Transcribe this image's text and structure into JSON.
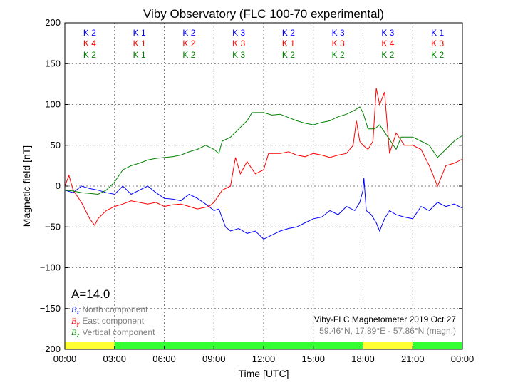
{
  "chart_data": {
    "type": "line",
    "title": "Viby Observatory (FLC 100-70 experimental)",
    "xlabel": "Time [UTC]",
    "ylabel": "Magnetic field [nT]",
    "xlim": [
      0,
      24
    ],
    "ylim": [
      -200,
      200
    ],
    "xticks": [
      "00:00",
      "03:00",
      "06:00",
      "09:00",
      "12:00",
      "15:00",
      "18:00",
      "21:00",
      "00:00"
    ],
    "yticks": [
      200,
      150,
      100,
      50,
      0,
      -50,
      -100,
      -150,
      -200
    ],
    "grid": true,
    "k_indices": {
      "north": [
        "K 2",
        "K 1",
        "K 2",
        "K 3",
        "K 2",
        "K 3",
        "K 3",
        "K 1"
      ],
      "east": [
        "K 4",
        "K 1",
        "K 2",
        "K 3",
        "K 1",
        "K 3",
        "K 4",
        "K 3"
      ],
      "vertical": [
        "K 2",
        "K 1",
        "K 2",
        "K 3",
        "K 2",
        "K 2",
        "K 2",
        "K 2"
      ]
    },
    "activity_bar": [
      {
        "from": 0,
        "to": 3,
        "color": "#ffff33"
      },
      {
        "from": 3,
        "to": 18,
        "color": "#33ff33"
      },
      {
        "from": 18,
        "to": 21,
        "color": "#ffff33"
      },
      {
        "from": 21,
        "to": 24,
        "color": "#33ff33"
      }
    ],
    "a_index": "A=14.0",
    "legend": [
      {
        "symbol": "B",
        "sub": "x",
        "label": "North component",
        "color": "#0000ff"
      },
      {
        "symbol": "B",
        "sub": "y",
        "label": "East component",
        "color": "#ff0000"
      },
      {
        "symbol": "B",
        "sub": "z",
        "label": "Vertical component",
        "color": "#008000"
      }
    ],
    "station": "Viby-FLC Magnetometer 2019 Oct 27",
    "coords": "59.46°N, 17.89°E - 57.86°N (magn.)",
    "series": [
      {
        "name": "Bx",
        "color": "#0000ff",
        "points": [
          [
            0,
            -5
          ],
          [
            0.5,
            -8
          ],
          [
            1,
            0
          ],
          [
            1.5,
            -3
          ],
          [
            2,
            -5
          ],
          [
            2.5,
            -8
          ],
          [
            3,
            -10
          ],
          [
            3.5,
            0
          ],
          [
            4,
            -10
          ],
          [
            4.5,
            -5
          ],
          [
            5,
            0
          ],
          [
            5.5,
            -8
          ],
          [
            6,
            -15
          ],
          [
            6.5,
            -16
          ],
          [
            7,
            -18
          ],
          [
            7.5,
            -10
          ],
          [
            8,
            -15
          ],
          [
            8.5,
            -22
          ],
          [
            8.7,
            -25
          ],
          [
            9,
            -30
          ],
          [
            9.3,
            -28
          ],
          [
            9.7,
            -50
          ],
          [
            10,
            -55
          ],
          [
            10.5,
            -52
          ],
          [
            11,
            -58
          ],
          [
            11.5,
            -55
          ],
          [
            12,
            -65
          ],
          [
            12.5,
            -60
          ],
          [
            13,
            -55
          ],
          [
            13.5,
            -52
          ],
          [
            14,
            -50
          ],
          [
            14.5,
            -45
          ],
          [
            15,
            -40
          ],
          [
            15.5,
            -38
          ],
          [
            16,
            -30
          ],
          [
            16.5,
            -35
          ],
          [
            17,
            -25
          ],
          [
            17.5,
            -30
          ],
          [
            17.8,
            -20
          ],
          [
            18,
            -5
          ],
          [
            18.05,
            10
          ],
          [
            18.2,
            -30
          ],
          [
            18.5,
            -35
          ],
          [
            18.8,
            -45
          ],
          [
            19,
            -55
          ],
          [
            19.3,
            -40
          ],
          [
            19.6,
            -30
          ],
          [
            20,
            -35
          ],
          [
            20.5,
            -38
          ],
          [
            21,
            -40
          ],
          [
            21.5,
            -25
          ],
          [
            22,
            -30
          ],
          [
            22.5,
            -20
          ],
          [
            23,
            -25
          ],
          [
            23.5,
            -22
          ],
          [
            24,
            -27
          ]
        ]
      },
      {
        "name": "By",
        "color": "#ff0000",
        "points": [
          [
            0,
            0
          ],
          [
            0.25,
            13
          ],
          [
            0.5,
            -5
          ],
          [
            1,
            -20
          ],
          [
            1.5,
            -40
          ],
          [
            1.8,
            -48
          ],
          [
            2,
            -40
          ],
          [
            2.5,
            -30
          ],
          [
            3,
            -25
          ],
          [
            3.5,
            -22
          ],
          [
            4,
            -18
          ],
          [
            4.5,
            -20
          ],
          [
            5,
            -22
          ],
          [
            5.5,
            -20
          ],
          [
            6,
            -25
          ],
          [
            6.5,
            -23
          ],
          [
            7,
            -22
          ],
          [
            7.5,
            -25
          ],
          [
            8,
            -28
          ],
          [
            8.7,
            -25
          ],
          [
            9,
            -20
          ],
          [
            9.5,
            -5
          ],
          [
            10,
            0
          ],
          [
            10.3,
            35
          ],
          [
            10.6,
            15
          ],
          [
            11,
            30
          ],
          [
            11.5,
            15
          ],
          [
            12,
            20
          ],
          [
            12.3,
            40
          ],
          [
            13,
            40
          ],
          [
            13.5,
            42
          ],
          [
            14,
            38
          ],
          [
            14.5,
            36
          ],
          [
            15,
            40
          ],
          [
            15.5,
            38
          ],
          [
            16,
            35
          ],
          [
            16.5,
            38
          ],
          [
            17,
            40
          ],
          [
            17.4,
            50
          ],
          [
            17.6,
            80
          ],
          [
            17.8,
            55
          ],
          [
            18,
            50
          ],
          [
            18.3,
            45
          ],
          [
            18.6,
            55
          ],
          [
            18.8,
            120
          ],
          [
            19,
            100
          ],
          [
            19.3,
            115
          ],
          [
            19.6,
            40
          ],
          [
            20,
            65
          ],
          [
            20.5,
            50
          ],
          [
            21,
            50
          ],
          [
            21.5,
            45
          ],
          [
            22,
            25
          ],
          [
            22.5,
            0
          ],
          [
            23,
            25
          ],
          [
            23.5,
            28
          ],
          [
            24,
            33
          ]
        ]
      },
      {
        "name": "Bz",
        "color": "#008000",
        "points": [
          [
            0,
            -5
          ],
          [
            0.5,
            -6
          ],
          [
            1,
            -8
          ],
          [
            1.5,
            -9
          ],
          [
            2,
            -10
          ],
          [
            2.5,
            -5
          ],
          [
            3,
            5
          ],
          [
            3.5,
            20
          ],
          [
            4,
            25
          ],
          [
            4.5,
            28
          ],
          [
            5,
            32
          ],
          [
            5.5,
            34
          ],
          [
            6,
            35
          ],
          [
            6.5,
            36
          ],
          [
            7,
            38
          ],
          [
            7.5,
            42
          ],
          [
            8,
            45
          ],
          [
            8.5,
            50
          ],
          [
            9,
            45
          ],
          [
            9.3,
            40
          ],
          [
            9.5,
            55
          ],
          [
            10,
            60
          ],
          [
            10.5,
            70
          ],
          [
            11,
            80
          ],
          [
            11.3,
            90
          ],
          [
            12,
            90
          ],
          [
            12.5,
            87
          ],
          [
            13,
            88
          ],
          [
            13.5,
            84
          ],
          [
            14,
            80
          ],
          [
            14.5,
            77
          ],
          [
            15,
            75
          ],
          [
            15.5,
            78
          ],
          [
            16,
            80
          ],
          [
            16.5,
            85
          ],
          [
            17,
            88
          ],
          [
            17.5,
            93
          ],
          [
            17.8,
            97
          ],
          [
            18,
            90
          ],
          [
            18.3,
            70
          ],
          [
            18.7,
            70
          ],
          [
            19,
            75
          ],
          [
            19.5,
            60
          ],
          [
            20,
            45
          ],
          [
            20.3,
            60
          ],
          [
            21,
            60
          ],
          [
            21.5,
            55
          ],
          [
            22,
            50
          ],
          [
            22.5,
            35
          ],
          [
            23,
            45
          ],
          [
            23.5,
            55
          ],
          [
            24,
            62
          ]
        ]
      }
    ]
  }
}
